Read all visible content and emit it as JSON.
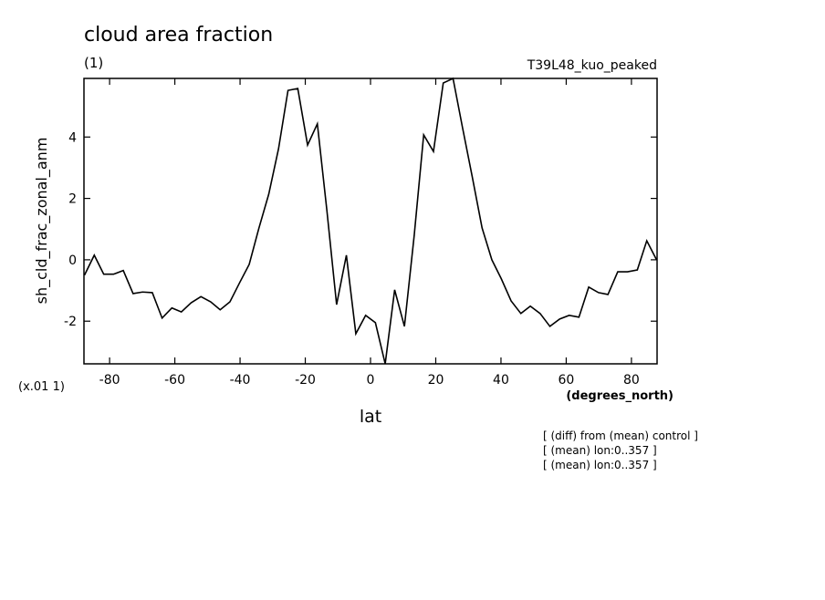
{
  "chart_data": {
    "type": "line",
    "title": "cloud area fraction",
    "subtitle": "(1)",
    "experiment": "T39L48_kuo_peaked",
    "y_label": "sh_cld_frac_zonal_anm",
    "y_scale_label": "(x.01 1)",
    "x_unit_label": "(degrees_north)",
    "x_label": "lat",
    "notes": [
      "[ (diff) from (mean) control ]",
      "[ (mean) lon:0..357 ]",
      "[ (mean) lon:0..357 ]"
    ],
    "x": [
      -87.7,
      -84.7,
      -81.8,
      -78.8,
      -75.8,
      -72.8,
      -69.9,
      -66.9,
      -63.9,
      -60.9,
      -58.0,
      -55.0,
      -52.0,
      -49.0,
      -46.1,
      -43.1,
      -40.1,
      -37.2,
      -34.2,
      -31.2,
      -28.2,
      -25.3,
      -22.3,
      -19.3,
      -16.3,
      -13.4,
      -10.4,
      -7.4,
      -4.5,
      -1.5,
      1.5,
      4.5,
      7.4,
      10.4,
      13.4,
      16.3,
      19.3,
      22.3,
      25.3,
      28.2,
      31.2,
      34.2,
      37.2,
      40.1,
      43.1,
      46.1,
      49.0,
      52.0,
      55.0,
      58.0,
      60.9,
      63.9,
      66.9,
      69.9,
      72.8,
      75.8,
      78.8,
      81.8,
      84.7,
      87.7
    ],
    "series": [
      {
        "color": "#000000",
        "values": [
          -0.5,
          0.15,
          -0.47,
          -0.47,
          -0.35,
          -1.1,
          -1.05,
          -1.07,
          -1.9,
          -1.57,
          -1.7,
          -1.4,
          -1.2,
          -1.37,
          -1.63,
          -1.37,
          -0.74,
          -0.15,
          1.04,
          2.14,
          3.62,
          5.52,
          5.58,
          3.74,
          4.43,
          1.63,
          -1.46,
          0.15,
          -2.41,
          -1.81,
          -2.05,
          -3.39,
          -0.98,
          -2.17,
          0.8,
          4.07,
          3.53,
          5.76,
          5.91,
          4.31,
          2.7,
          1.04,
          0,
          -0.62,
          -1.34,
          -1.75,
          -1.51,
          -1.75,
          -2.17,
          -1.93,
          -1.81,
          -1.87,
          -0.89,
          -1.07,
          -1.13,
          -0.39,
          -0.39,
          -0.33,
          0.62,
          0
        ]
      }
    ],
    "xlim": [
      -87.86,
      87.86
    ],
    "ylim": [
      -3.39,
      5.91
    ],
    "xticks": [
      -80,
      -60,
      -40,
      -20,
      0,
      20,
      40,
      60,
      80
    ],
    "yticks": [
      -2,
      0,
      2,
      4
    ]
  }
}
